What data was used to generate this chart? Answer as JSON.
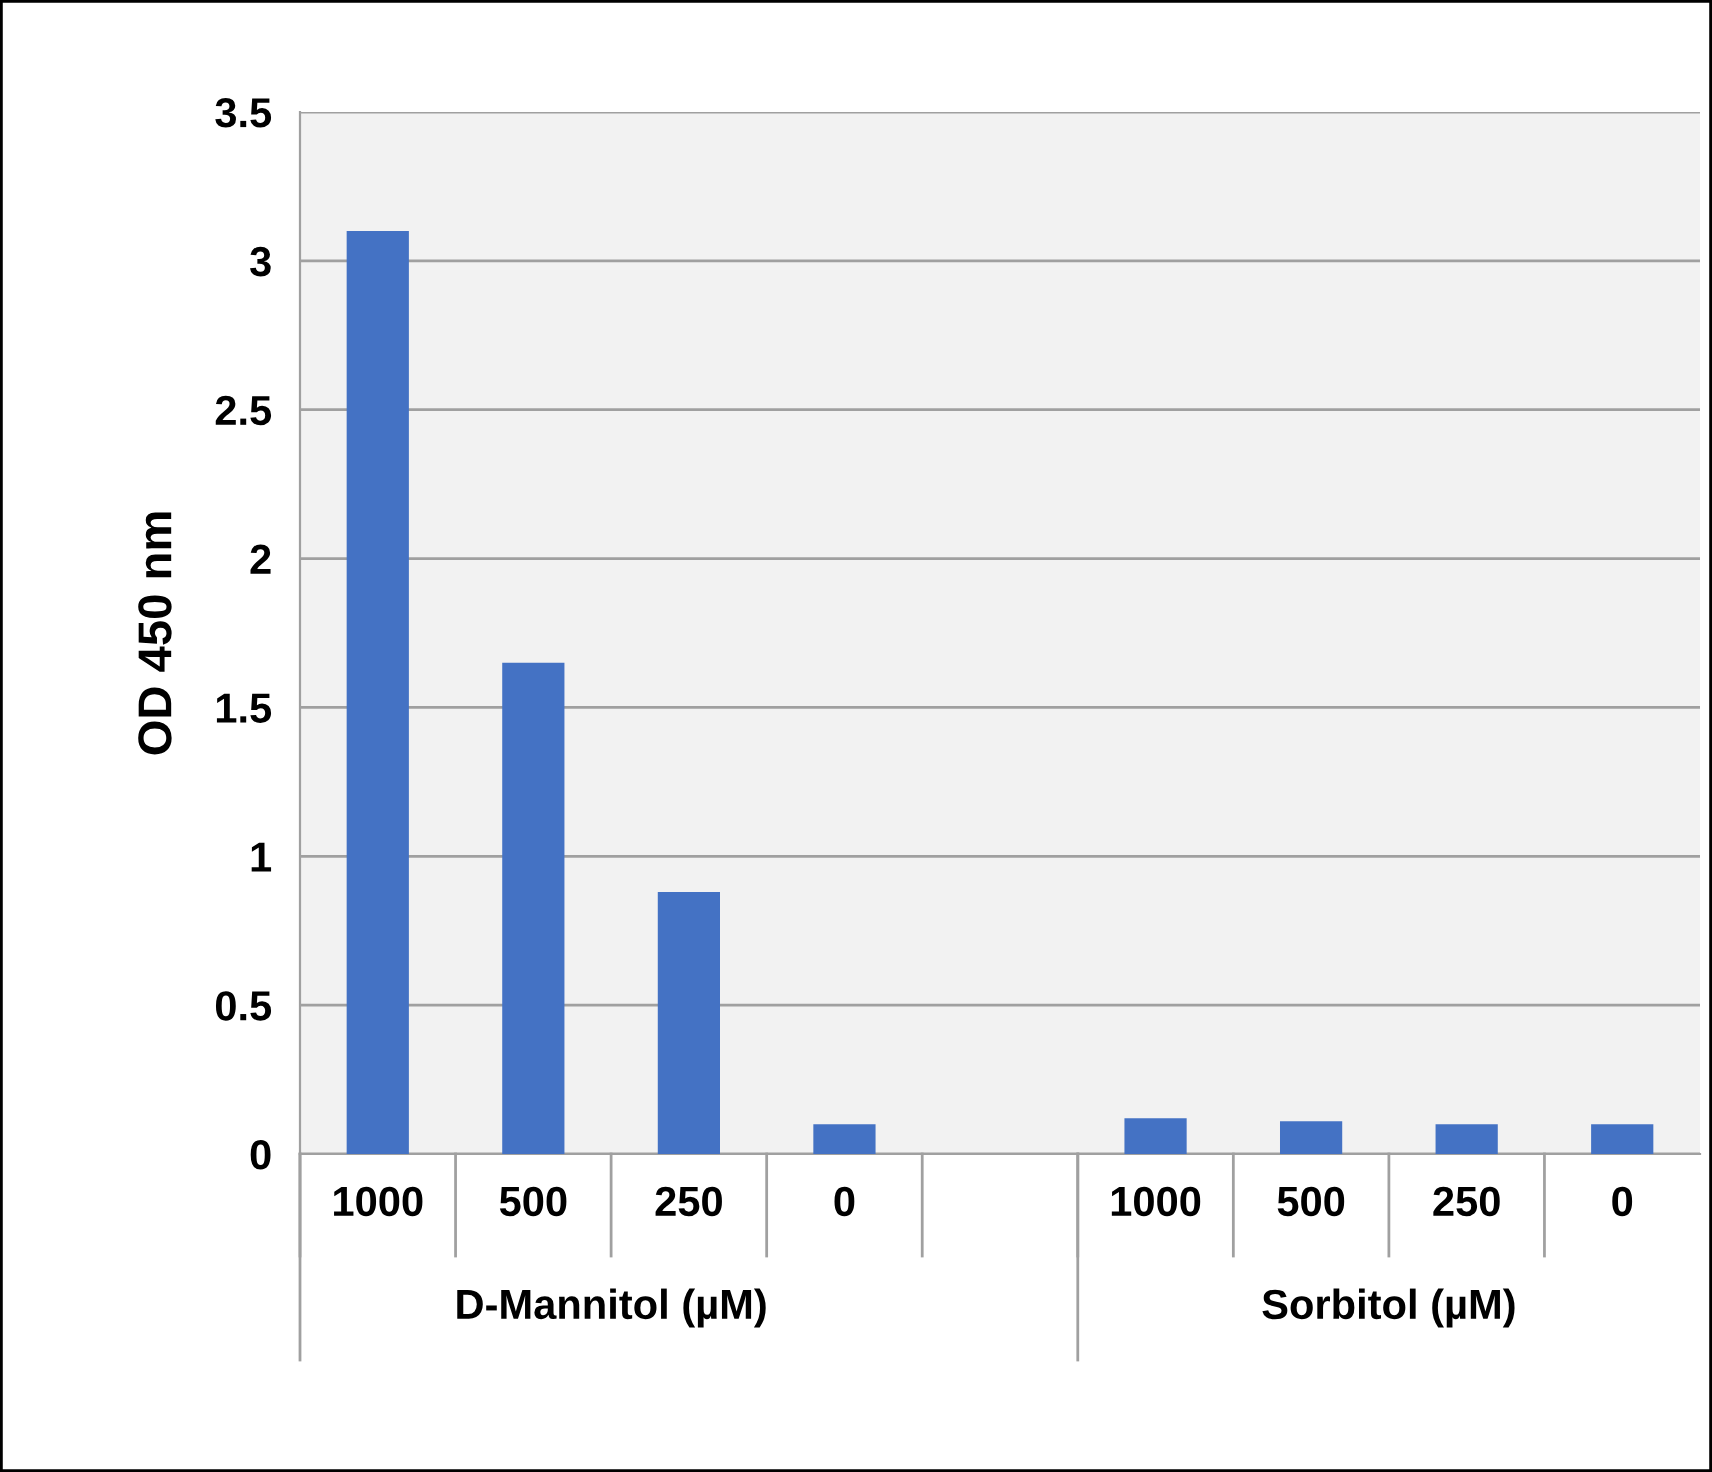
{
  "chart_data": {
    "type": "bar",
    "ylabel": "OD 450 nm",
    "categories": [
      "1000",
      "500",
      "250",
      "0",
      null,
      "1000",
      "500",
      "250",
      "0"
    ],
    "values": [
      3.1,
      1.65,
      0.88,
      0.1,
      null,
      0.12,
      0.11,
      0.1,
      0.1
    ],
    "color": "#4472c4",
    "ylim": [
      0,
      3.5
    ],
    "yticks": [
      0,
      0.5,
      1,
      1.5,
      2,
      2.5,
      3,
      3.5
    ],
    "grid": "y",
    "legend": false,
    "annotations": [
      "D-Mannitol (µM)",
      "Sorbitol (µM)"
    ]
  }
}
